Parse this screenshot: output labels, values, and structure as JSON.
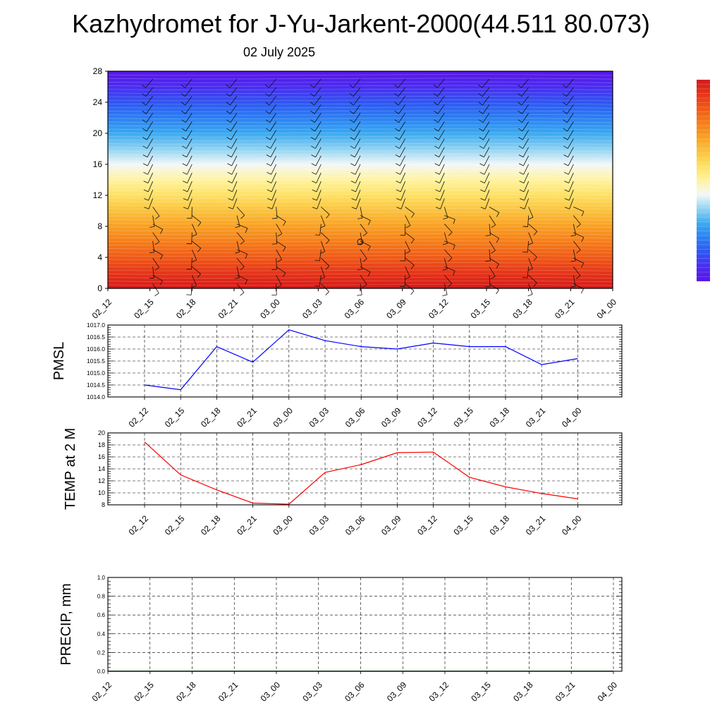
{
  "title": "Kazhydromet for J-Yu-Jarkent-2000(44.511 80.073)",
  "subtitle": "02 July 2025",
  "chart_data": [
    {
      "type": "heatmap",
      "name": "vertical-profile",
      "x_ticks": [
        "02_12",
        "02_15",
        "02_18",
        "02_21",
        "03_00",
        "03_03",
        "03_06",
        "03_09",
        "03_12",
        "03_15",
        "03_18",
        "03_21",
        "04_00"
      ],
      "y_ticks": [
        "0",
        "4",
        "8",
        "12",
        "16",
        "20",
        "24",
        "28"
      ],
      "ylim": [
        0,
        28
      ],
      "colorbar": [
        "#5a13e8",
        "#4b2cf0",
        "#2f55f2",
        "#2b7ff3",
        "#3aa9f0",
        "#8ed2f2",
        "#f3f7f8",
        "#fff3a0",
        "#fde164",
        "#fbc23e",
        "#f9a023",
        "#f57d1a",
        "#f05a17",
        "#e63418",
        "#d31a1a"
      ],
      "calm_marker": {
        "x": "03_06",
        "y": 6
      },
      "has_wind_barbs": true
    },
    {
      "type": "line",
      "ylabel": "PMSL",
      "x": [
        "02_12",
        "02_15",
        "02_18",
        "02_21",
        "03_00",
        "03_03",
        "03_06",
        "03_09",
        "03_12",
        "03_15",
        "03_18",
        "03_21",
        "04_00"
      ],
      "series": [
        {
          "values": [
            1014.5,
            1014.3,
            1016.1,
            1015.45,
            1016.8,
            1016.35,
            1016.1,
            1016.0,
            1016.25,
            1016.1,
            1016.1,
            1015.35,
            1015.6
          ],
          "color": "#0000ff"
        }
      ],
      "ylim": [
        1014.0,
        1017.0
      ],
      "y_ticks": [
        "1014.0",
        "1014.5",
        "1015.0",
        "1015.5",
        "1016.0",
        "1016.5",
        "1017.0"
      ],
      "grid": true
    },
    {
      "type": "line",
      "ylabel": "TEMP at 2 M",
      "x": [
        "02_12",
        "02_15",
        "02_18",
        "02_21",
        "03_00",
        "03_03",
        "03_06",
        "03_09",
        "03_12",
        "03_15",
        "03_18",
        "03_21",
        "04_00"
      ],
      "series": [
        {
          "values": [
            18.5,
            13.0,
            10.5,
            8.3,
            8.1,
            13.4,
            14.7,
            16.7,
            16.8,
            12.6,
            11.0,
            9.9,
            9.0
          ],
          "color": "#ff0000"
        }
      ],
      "ylim": [
        8,
        20
      ],
      "y_ticks": [
        "8",
        "10",
        "12",
        "14",
        "16",
        "18",
        "20"
      ],
      "grid": true
    },
    {
      "type": "line",
      "ylabel": "PRECIP, mm",
      "x": [
        "02_12",
        "02_15",
        "02_18",
        "02_21",
        "03_00",
        "03_03",
        "03_06",
        "03_09",
        "03_12",
        "03_15",
        "03_18",
        "03_21",
        "04_00"
      ],
      "series": [
        {
          "values": [
            0,
            0,
            0,
            0,
            0,
            0,
            0,
            0,
            0,
            0,
            0,
            0,
            0
          ],
          "color": "#006400"
        }
      ],
      "ylim": [
        0,
        1.0
      ],
      "y_ticks": [
        "0.0",
        "0.2",
        "0.4",
        "0.6",
        "0.8",
        "1.0"
      ],
      "grid": true
    }
  ]
}
